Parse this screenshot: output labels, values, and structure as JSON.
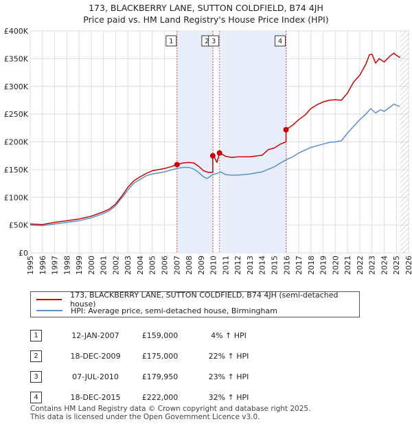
{
  "title_line1": "173, BLACKBERRY LANE, SUTTON COLDFIELD, B74 4JH",
  "title_line2": "Price paid vs. HM Land Registry's House Price Index (HPI)",
  "chart_data": {
    "type": "line",
    "x_ticks": [
      1995,
      1996,
      1997,
      1998,
      1999,
      2000,
      2001,
      2002,
      2003,
      2004,
      2005,
      2006,
      2007,
      2008,
      2009,
      2010,
      2011,
      2012,
      2013,
      2014,
      2015,
      2016,
      2017,
      2018,
      2019,
      2020,
      2021,
      2022,
      2023,
      2024,
      2025,
      2026
    ],
    "x_range": [
      1995,
      2026
    ],
    "y_ticks": [
      0,
      50000,
      100000,
      150000,
      200000,
      250000,
      300000,
      350000,
      400000
    ],
    "y_tick_labels": [
      "£0",
      "£50K",
      "£100K",
      "£150K",
      "£200K",
      "£250K",
      "£300K",
      "£350K",
      "£400K"
    ],
    "y_range": [
      0,
      400000
    ],
    "grid": true,
    "series": [
      {
        "name": "173, BLACKBERRY LANE, SUTTON COLDFIELD, B74 4JH (semi-detached house)",
        "color": "#cc0000",
        "points": [
          [
            1995.0,
            52000
          ],
          [
            1996.0,
            51000
          ],
          [
            1997.0,
            55000
          ],
          [
            1998.0,
            58000
          ],
          [
            1999.0,
            61000
          ],
          [
            2000.0,
            66000
          ],
          [
            2001.0,
            74000
          ],
          [
            2001.5,
            79000
          ],
          [
            2002.0,
            88000
          ],
          [
            2002.5,
            102000
          ],
          [
            2003.0,
            118000
          ],
          [
            2003.5,
            130000
          ],
          [
            2004.0,
            137000
          ],
          [
            2004.5,
            143000
          ],
          [
            2005.0,
            148000
          ],
          [
            2005.5,
            150000
          ],
          [
            2006.0,
            152000
          ],
          [
            2006.5,
            155000
          ],
          [
            2007.03,
            159000
          ],
          [
            2007.5,
            162000
          ],
          [
            2008.0,
            163000
          ],
          [
            2008.4,
            162000
          ],
          [
            2008.8,
            156000
          ],
          [
            2009.2,
            148000
          ],
          [
            2009.6,
            145000
          ],
          [
            2009.96,
            145000
          ],
          [
            2009.96,
            175000
          ],
          [
            2010.1,
            172000
          ],
          [
            2010.3,
            163000
          ],
          [
            2010.51,
            179950
          ],
          [
            2010.8,
            177000
          ],
          [
            2011.0,
            174000
          ],
          [
            2011.5,
            172000
          ],
          [
            2012.0,
            173000
          ],
          [
            2013.0,
            173000
          ],
          [
            2014.0,
            176000
          ],
          [
            2014.5,
            186000
          ],
          [
            2015.0,
            189000
          ],
          [
            2015.5,
            196000
          ],
          [
            2015.96,
            200000
          ],
          [
            2015.96,
            222000
          ],
          [
            2016.5,
            230000
          ],
          [
            2017.0,
            240000
          ],
          [
            2017.5,
            248000
          ],
          [
            2018.0,
            260000
          ],
          [
            2018.5,
            267000
          ],
          [
            2019.0,
            272000
          ],
          [
            2019.5,
            275000
          ],
          [
            2020.0,
            276000
          ],
          [
            2020.5,
            275000
          ],
          [
            2021.0,
            288000
          ],
          [
            2021.5,
            308000
          ],
          [
            2022.0,
            320000
          ],
          [
            2022.5,
            340000
          ],
          [
            2022.8,
            357000
          ],
          [
            2023.0,
            358000
          ],
          [
            2023.3,
            342000
          ],
          [
            2023.6,
            350000
          ],
          [
            2024.0,
            344000
          ],
          [
            2024.5,
            355000
          ],
          [
            2024.8,
            360000
          ],
          [
            2025.0,
            356000
          ],
          [
            2025.3,
            352000
          ]
        ]
      },
      {
        "name": "HPI: Average price, semi-detached house, Birmingham",
        "color": "#5b8fc7",
        "points": [
          [
            1995.0,
            50000
          ],
          [
            1996.0,
            49000
          ],
          [
            1997.0,
            52000
          ],
          [
            1998.0,
            55000
          ],
          [
            1999.0,
            58000
          ],
          [
            2000.0,
            63000
          ],
          [
            2001.0,
            71000
          ],
          [
            2001.5,
            76000
          ],
          [
            2002.0,
            85000
          ],
          [
            2002.5,
            99000
          ],
          [
            2003.0,
            113000
          ],
          [
            2003.5,
            126000
          ],
          [
            2004.0,
            132000
          ],
          [
            2004.5,
            139000
          ],
          [
            2005.0,
            142000
          ],
          [
            2005.5,
            144000
          ],
          [
            2006.0,
            146000
          ],
          [
            2006.5,
            149000
          ],
          [
            2007.0,
            152000
          ],
          [
            2007.5,
            154000
          ],
          [
            2008.0,
            154000
          ],
          [
            2008.4,
            151000
          ],
          [
            2008.8,
            145000
          ],
          [
            2009.2,
            137000
          ],
          [
            2009.5,
            134000
          ],
          [
            2009.96,
            141000
          ],
          [
            2010.3,
            143000
          ],
          [
            2010.6,
            146000
          ],
          [
            2011.0,
            141000
          ],
          [
            2011.5,
            140000
          ],
          [
            2012.0,
            140000
          ],
          [
            2013.0,
            142000
          ],
          [
            2014.0,
            146000
          ],
          [
            2015.0,
            155000
          ],
          [
            2015.5,
            162000
          ],
          [
            2016.0,
            168000
          ],
          [
            2016.5,
            173000
          ],
          [
            2017.0,
            180000
          ],
          [
            2018.0,
            190000
          ],
          [
            2019.0,
            196000
          ],
          [
            2019.5,
            199000
          ],
          [
            2020.0,
            200000
          ],
          [
            2020.5,
            202000
          ],
          [
            2021.0,
            216000
          ],
          [
            2021.5,
            228000
          ],
          [
            2022.0,
            240000
          ],
          [
            2022.5,
            250000
          ],
          [
            2022.9,
            260000
          ],
          [
            2023.3,
            252000
          ],
          [
            2023.7,
            258000
          ],
          [
            2024.0,
            255000
          ],
          [
            2024.5,
            263000
          ],
          [
            2024.8,
            268000
          ],
          [
            2025.0,
            266000
          ],
          [
            2025.3,
            264000
          ]
        ]
      }
    ],
    "markers": [
      {
        "label": "1",
        "x": 2007.03,
        "price": 159000
      },
      {
        "label": "2",
        "x": 2009.96,
        "price": 175000
      },
      {
        "label": "3",
        "x": 2010.51,
        "price": 179950
      },
      {
        "label": "4",
        "x": 2015.96,
        "price": 222000
      }
    ],
    "shaded_spans": [
      [
        2007.03,
        2009.96
      ],
      [
        2010.51,
        2015.96
      ]
    ],
    "hatched_from": 2025.3
  },
  "legend": {
    "property": "173, BLACKBERRY LANE, SUTTON COLDFIELD, B74 4JH (semi-detached house)",
    "hpi": "HPI: Average price, semi-detached house, Birmingham"
  },
  "transactions": [
    {
      "num": "1",
      "date": "12-JAN-2007",
      "price": "£159,000",
      "hpi": "4% ↑ HPI"
    },
    {
      "num": "2",
      "date": "18-DEC-2009",
      "price": "£175,000",
      "hpi": "22% ↑ HPI"
    },
    {
      "num": "3",
      "date": "07-JUL-2010",
      "price": "£179,950",
      "hpi": "23% ↑ HPI"
    },
    {
      "num": "4",
      "date": "18-DEC-2015",
      "price": "£222,000",
      "hpi": "32% ↑ HPI"
    }
  ],
  "footer_line1": "Contains HM Land Registry data © Crown copyright and database right 2025.",
  "footer_line2": "This data is licensed under the Open Government Licence v3.0."
}
